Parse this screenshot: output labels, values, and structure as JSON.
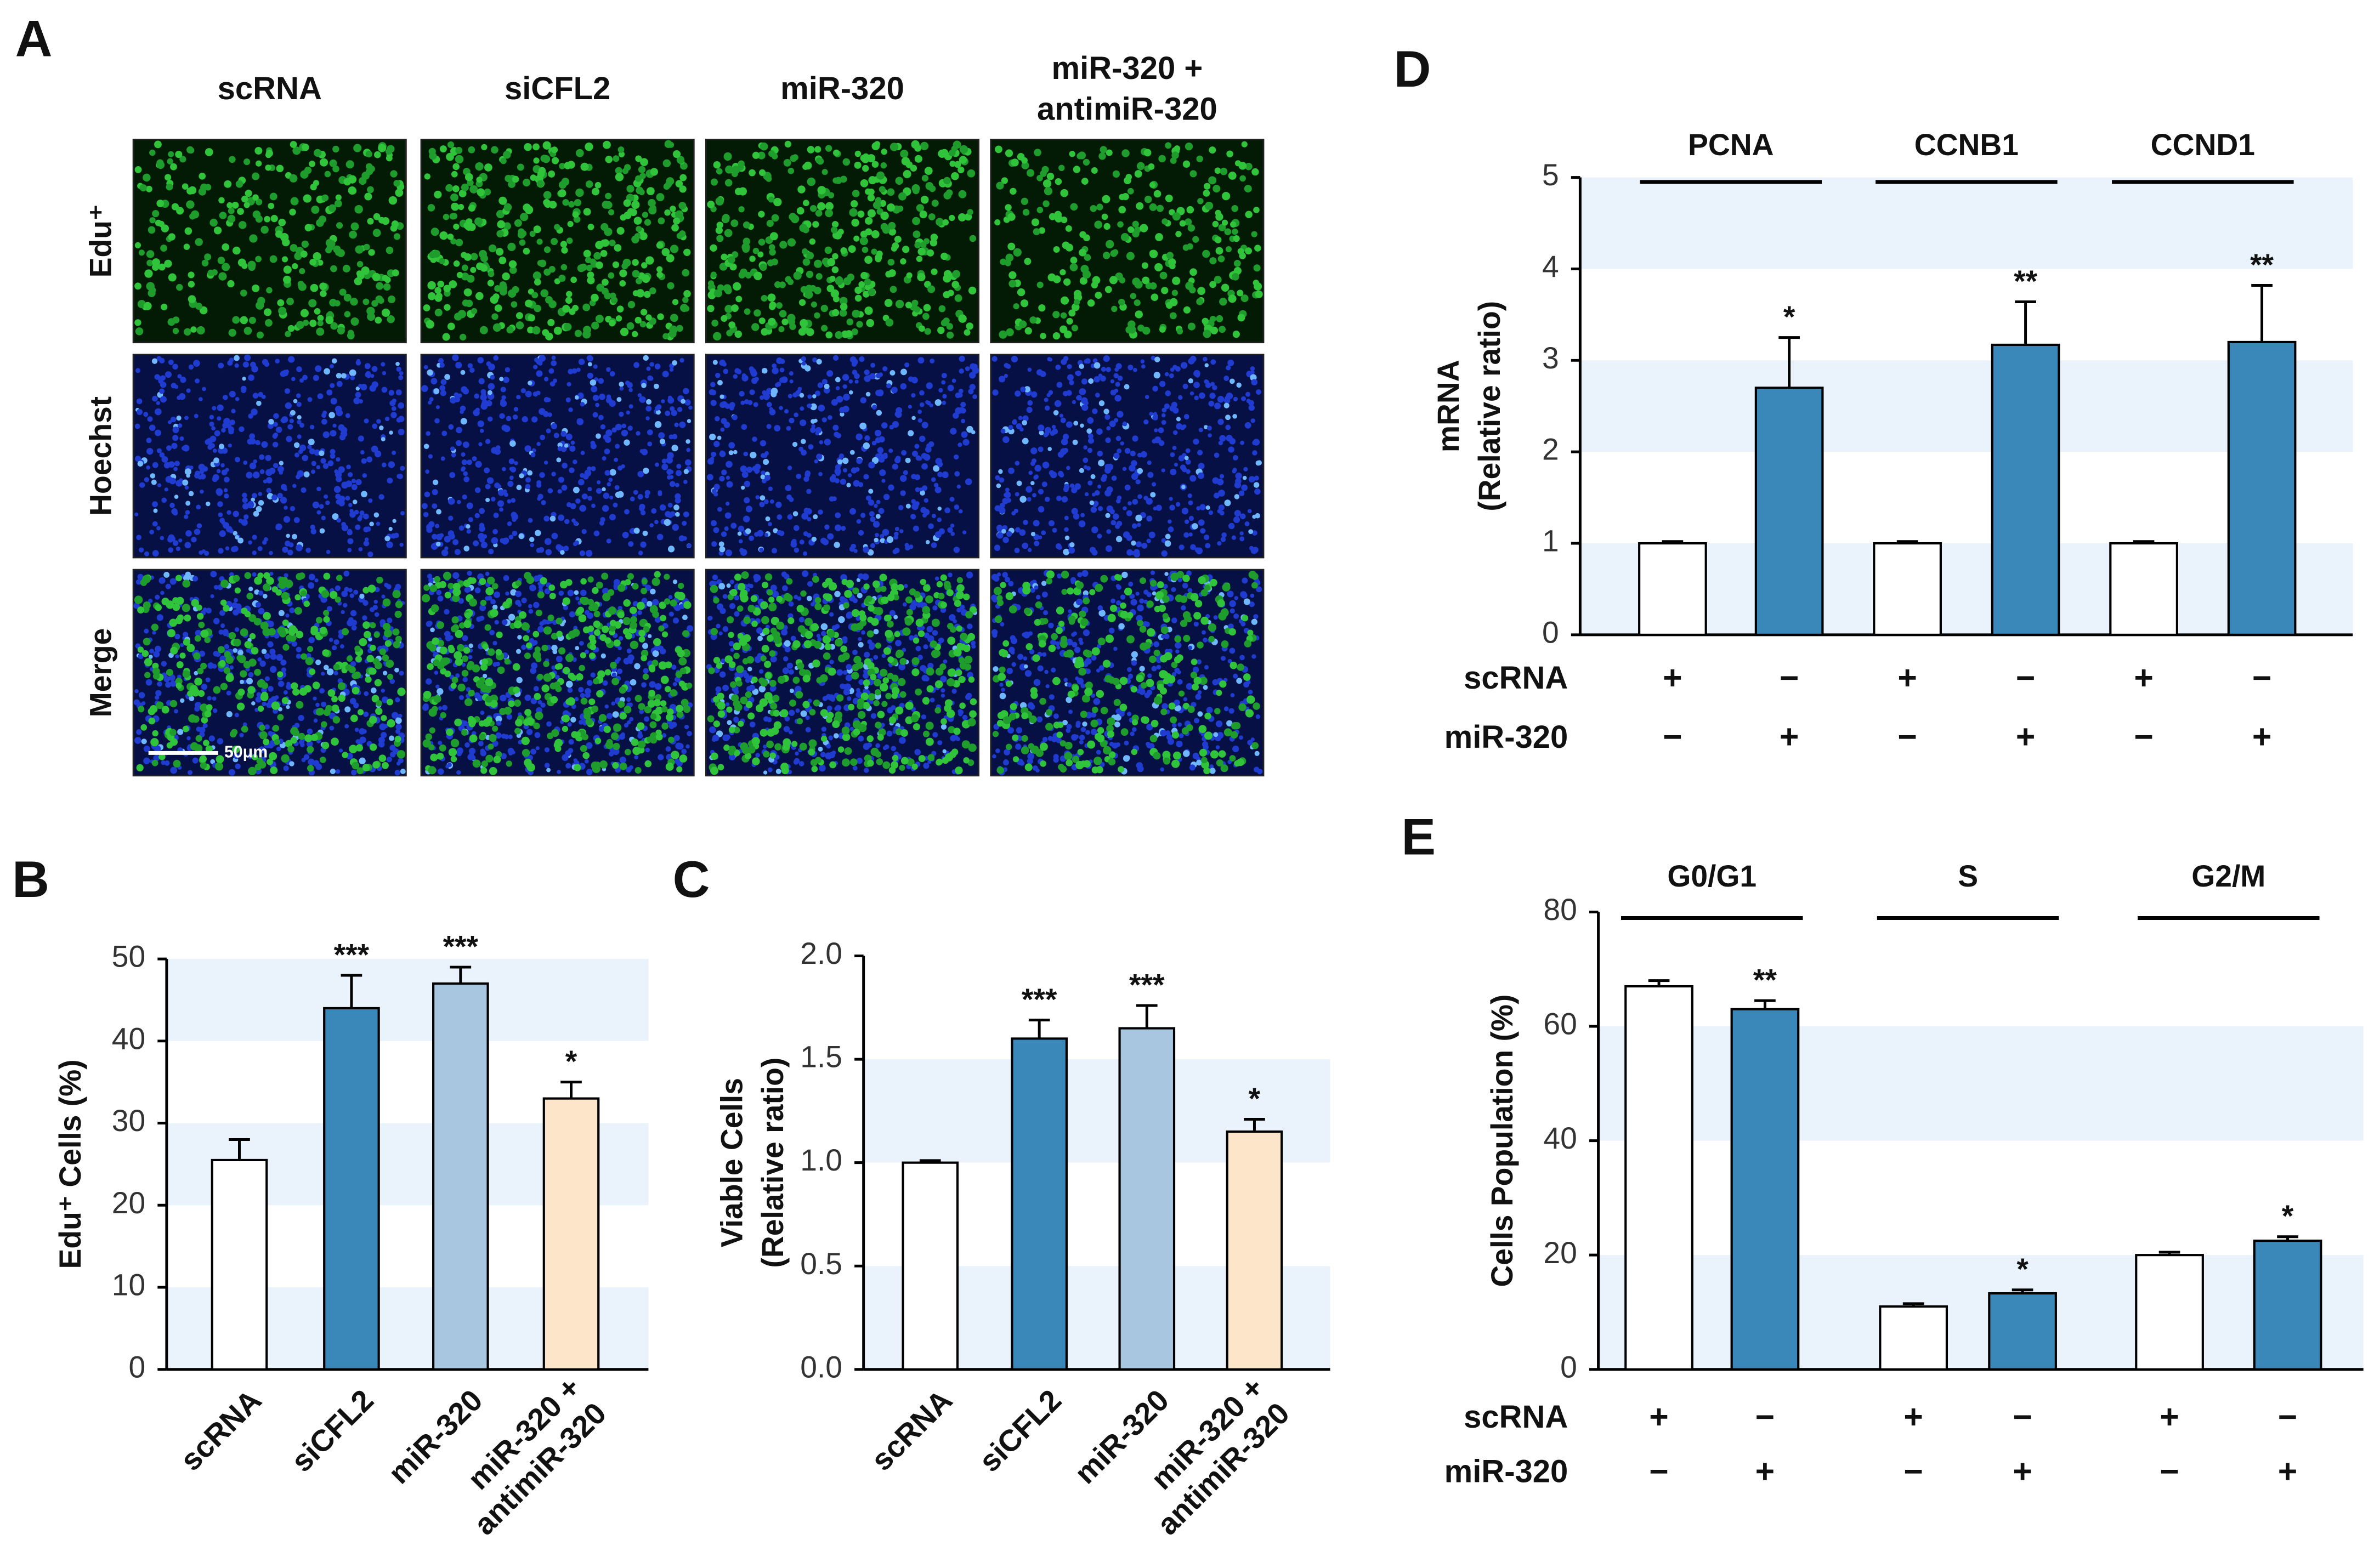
{
  "panel_a": {
    "panel": "A",
    "columns": [
      [
        "scRNA"
      ],
      [
        "siCFL2"
      ],
      [
        "miR-320"
      ],
      [
        "miR-320 +",
        "antimiR-320"
      ]
    ],
    "rows": [
      "Edu⁺",
      "Hoechst",
      "Merge"
    ],
    "scale_bar": "50μm"
  },
  "chart_data": [
    {
      "type": "bar",
      "panel": "B",
      "ylabel": "Edu⁺ Cells (%)",
      "categories": [
        "scRNA",
        "siCFL2",
        "miR-320",
        [
          "miR-320 +",
          "antimiR-320"
        ]
      ],
      "values": [
        25.5,
        44,
        47,
        33
      ],
      "errors": [
        2.5,
        4,
        2,
        2
      ],
      "significance": [
        null,
        "***",
        "***",
        "*"
      ],
      "colors": [
        "#ffffff",
        "#3a87b9",
        "#a9c6e0",
        "#fde5c9"
      ],
      "ylim": [
        0,
        50
      ],
      "yticks": [
        0,
        10,
        20,
        30,
        40,
        50
      ],
      "bands": true,
      "band_color": "#eaf3fb"
    },
    {
      "type": "bar",
      "panel": "C",
      "ylabel": [
        "Viable Cells",
        "(Relative ratio)"
      ],
      "categories": [
        "scRNA",
        "siCFL2",
        "miR-320",
        [
          "miR-320 +",
          "antimiR-320"
        ]
      ],
      "values": [
        1.0,
        1.6,
        1.65,
        1.15
      ],
      "errors": [
        0.01,
        0.09,
        0.11,
        0.06
      ],
      "significance": [
        null,
        "***",
        "***",
        "*"
      ],
      "colors": [
        "#ffffff",
        "#3a87b9",
        "#a9c6e0",
        "#fde5c9"
      ],
      "ylim": [
        0,
        2
      ],
      "yticks": [
        {
          "value": 0,
          "label": "0.0"
        },
        0.5,
        {
          "value": 1,
          "label": "1.0"
        },
        1.5,
        {
          "value": 2,
          "label": "2.0"
        }
      ],
      "bands": true,
      "band_color": "#eaf3fb"
    },
    {
      "type": "grouped_bar",
      "panel": "D",
      "ylabel": [
        "mRNA",
        "(Relative ratio)"
      ],
      "groups": [
        "PCNA",
        "CCNB1",
        "CCND1"
      ],
      "series": [
        {
          "name": "scRNA",
          "color": "#ffffff",
          "values": [
            1,
            1,
            1
          ],
          "errors": [
            0.02,
            0.02,
            0.02
          ],
          "significance": [
            null,
            null,
            null
          ]
        },
        {
          "name": "miR-320",
          "color": "#3a87b9",
          "values": [
            2.7,
            3.17,
            3.2
          ],
          "errors": [
            0.55,
            0.47,
            0.62
          ],
          "significance": [
            "*",
            "**",
            "**"
          ]
        }
      ],
      "conditions": [
        {
          "name": "scRNA",
          "signs": [
            "+",
            "−",
            "+",
            "−",
            "+",
            "−"
          ]
        },
        {
          "name": "miR-320",
          "signs": [
            "−",
            "+",
            "−",
            "+",
            "−",
            "+"
          ]
        }
      ],
      "ylim": [
        0,
        5
      ],
      "yticks": [
        0,
        1,
        2,
        3,
        4,
        5
      ],
      "bands": true,
      "band_color": "#eaf3fb"
    },
    {
      "type": "grouped_bar",
      "panel": "E",
      "ylabel": "Cells Population (%)",
      "groups": [
        "G0/G1",
        "S",
        "G2/M"
      ],
      "series": [
        {
          "name": "scRNA",
          "color": "#ffffff",
          "values": [
            67,
            11,
            20
          ],
          "errors": [
            1,
            0.5,
            0.5
          ],
          "significance": [
            null,
            null,
            null
          ]
        },
        {
          "name": "miR-320",
          "color": "#3a87b9",
          "values": [
            63,
            13.3,
            22.5
          ],
          "errors": [
            1.5,
            0.6,
            0.7
          ],
          "significance": [
            "**",
            "*",
            "*"
          ]
        }
      ],
      "conditions": [
        {
          "name": "scRNA",
          "signs": [
            "+",
            "−",
            "+",
            "−",
            "+",
            "−"
          ]
        },
        {
          "name": "miR-320",
          "signs": [
            "−",
            "+",
            "−",
            "+",
            "−",
            "+"
          ]
        }
      ],
      "ylim": [
        0,
        80
      ],
      "yticks": [
        0,
        20,
        40,
        60,
        80
      ],
      "bands": true,
      "band_color": "#eaf3fb"
    }
  ]
}
